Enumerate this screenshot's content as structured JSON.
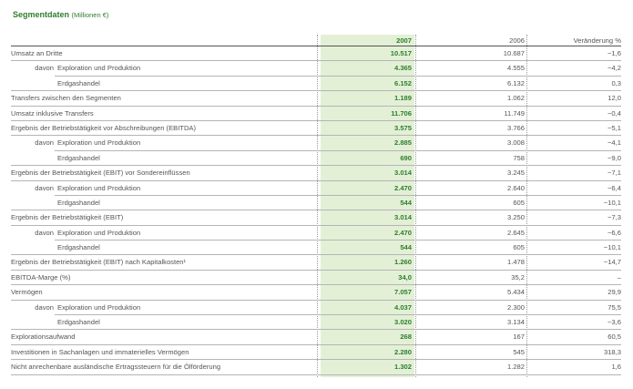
{
  "title": "Segmentdaten",
  "unit": "(Millionen €)",
  "columns": {
    "y2007": "2007",
    "y2006": "2006",
    "change": "Veränderung %"
  },
  "rows": [
    {
      "label": "Umsatz an Dritte",
      "v2007": "10.517",
      "v2006": "10.687",
      "change": "−1,6"
    },
    {
      "prefix": "davon",
      "label": "Exploration und Produktion",
      "v2007": "4.365",
      "v2006": "4.555",
      "change": "−4,2"
    },
    {
      "label": "Erdgashandel",
      "v2007": "6.152",
      "v2006": "6.132",
      "change": "0,3"
    },
    {
      "label": "Transfers zwischen den Segmenten",
      "v2007": "1.189",
      "v2006": "1.062",
      "change": "12,0"
    },
    {
      "label": "Umsatz inklusive Transfers",
      "v2007": "11.706",
      "v2006": "11.749",
      "change": "−0,4"
    },
    {
      "label": "Ergebnis der Betriebstätigkeit vor Abschreibungen (EBITDA)",
      "v2007": "3.575",
      "v2006": "3.766",
      "change": "−5,1"
    },
    {
      "prefix": "davon",
      "label": "Exploration und Produktion",
      "v2007": "2.885",
      "v2006": "3.008",
      "change": "−4,1"
    },
    {
      "label": "Erdgashandel",
      "v2007": "690",
      "v2006": "758",
      "change": "−9,0"
    },
    {
      "label": "Ergebnis der Betriebstätigkeit (EBIT) vor Sondereinflüssen",
      "v2007": "3.014",
      "v2006": "3.245",
      "change": "−7,1"
    },
    {
      "prefix": "davon",
      "label": "Exploration und Produktion",
      "v2007": "2.470",
      "v2006": "2.640",
      "change": "−6,4"
    },
    {
      "label": "Erdgashandel",
      "v2007": "544",
      "v2006": "605",
      "change": "−10,1"
    },
    {
      "label": "Ergebnis der Betriebstätigkeit (EBIT)",
      "v2007": "3.014",
      "v2006": "3.250",
      "change": "−7,3"
    },
    {
      "prefix": "davon",
      "label": "Exploration und Produktion",
      "v2007": "2.470",
      "v2006": "2.645",
      "change": "−6,6"
    },
    {
      "label": "Erdgashandel",
      "v2007": "544",
      "v2006": "605",
      "change": "−10,1"
    },
    {
      "label": "Ergebnis der Betriebstätigkeit (EBIT) nach Kapitalkosten¹",
      "v2007": "1.260",
      "v2006": "1.478",
      "change": "−14,7"
    },
    {
      "label": "EBITDA-Marge (%)",
      "v2007": "34,0",
      "v2006": "35,2",
      "change": "–"
    },
    {
      "label": "Vermögen",
      "v2007": "7.057",
      "v2006": "5.434",
      "change": "29,9"
    },
    {
      "prefix": "davon",
      "label": "Exploration und Produktion",
      "v2007": "4.037",
      "v2006": "2.300",
      "change": "75,5"
    },
    {
      "label": "Erdgashandel",
      "v2007": "3.020",
      "v2006": "3.134",
      "change": "−3,6"
    },
    {
      "label": "Explorationsaufwand",
      "v2007": "268",
      "v2006": "167",
      "change": "60,5"
    },
    {
      "label": "Investitionen in Sachanlagen und immaterielles Vermögen",
      "v2007": "2.280",
      "v2006": "545",
      "change": "318,3"
    },
    {
      "label": "Nicht anrechenbare ausländische Ertragssteuern für die Ölförderung",
      "v2007": "1.302",
      "v2006": "1.282",
      "change": "1,6"
    }
  ]
}
